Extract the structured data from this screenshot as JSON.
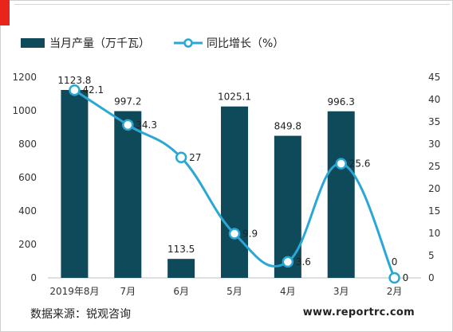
{
  "legend": {
    "bar_label": "当月产量（万千瓦）",
    "line_label": "同比增长（%）"
  },
  "colors": {
    "bar": "#0f4a5b",
    "line": "#2aa7d4",
    "accent": "#e8241b"
  },
  "footer": {
    "source": "数据来源：锐观咨询",
    "watermark": "www.reportrc.com"
  },
  "chart_data": {
    "type": "bar",
    "categories": [
      "2019年8月",
      "7月",
      "6月",
      "5月",
      "4月",
      "3月",
      "2月"
    ],
    "series": [
      {
        "name": "当月产量（万千瓦）",
        "type": "bar",
        "axis": "left",
        "values": [
          1123.8,
          997.2,
          113.5,
          1025.1,
          849.8,
          996.3,
          0
        ],
        "labels": [
          "1123.8",
          "997.2",
          "113.5",
          "1025.1",
          "849.8",
          "996.3",
          "0"
        ]
      },
      {
        "name": "同比增长（%）",
        "type": "line",
        "smooth": true,
        "axis": "right",
        "values": [
          42.1,
          34.3,
          27,
          9.9,
          3.6,
          25.6,
          0
        ],
        "labels": [
          "42.1",
          "34.3",
          "27",
          "9.9",
          "3.6",
          "25.6",
          "0"
        ]
      }
    ],
    "y_left": {
      "min": 0,
      "max": 1200,
      "step": 200,
      "ticks": [
        "0",
        "200",
        "400",
        "600",
        "800",
        "1000",
        "1200"
      ]
    },
    "y_right": {
      "min": 0,
      "max": 45,
      "step": 5,
      "ticks": [
        "0",
        "5",
        "10",
        "15",
        "20",
        "25",
        "30",
        "35",
        "40",
        "45"
      ]
    },
    "grid": false,
    "legend_position": "top-left"
  }
}
